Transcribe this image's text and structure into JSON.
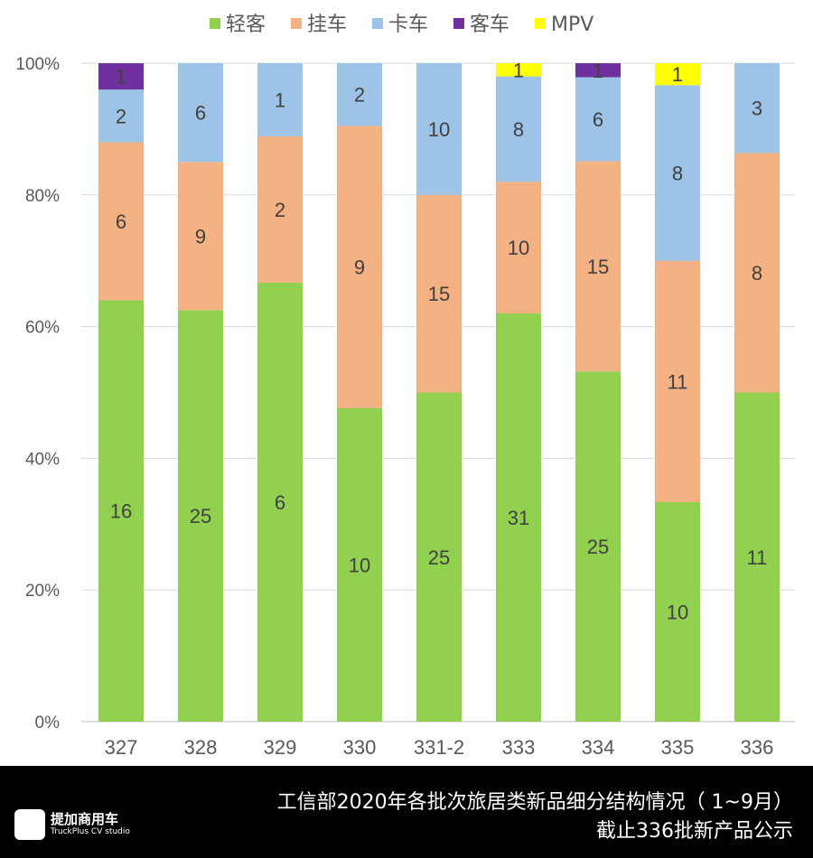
{
  "chart_data": {
    "type": "bar",
    "stacked": "percent",
    "categories": [
      "327",
      "328",
      "329",
      "330",
      "331-2",
      "333",
      "334",
      "335",
      "336"
    ],
    "series": [
      {
        "name": "轻客",
        "color": "#92d050",
        "values": [
          16,
          25,
          6,
          10,
          25,
          31,
          25,
          10,
          11
        ]
      },
      {
        "name": "挂车",
        "color": "#f4b183",
        "values": [
          6,
          9,
          2,
          9,
          15,
          10,
          15,
          11,
          8
        ]
      },
      {
        "name": "卡车",
        "color": "#9dc3e6",
        "values": [
          2,
          6,
          1,
          2,
          10,
          8,
          6,
          8,
          3
        ]
      },
      {
        "name": "客车",
        "color": "#7030a0",
        "values": [
          1,
          0,
          0,
          0,
          0,
          0,
          1,
          0,
          0
        ]
      },
      {
        "name": "MPV",
        "color": "#ffff00",
        "values": [
          0,
          0,
          0,
          0,
          0,
          1,
          0,
          1,
          0
        ]
      }
    ],
    "yticks": [
      "0%",
      "20%",
      "40%",
      "60%",
      "80%",
      "100%"
    ],
    "ylim": [
      0,
      100
    ],
    "grid": true,
    "legend": "top"
  },
  "footer": {
    "title_line1": "工信部2020年各批次旅居类新品细分结构情况（ 1~9月）",
    "title_line2": "截止336批新产品公示",
    "logo_name": "提加商用车",
    "logo_sub": "TruckPlus CV studio"
  }
}
